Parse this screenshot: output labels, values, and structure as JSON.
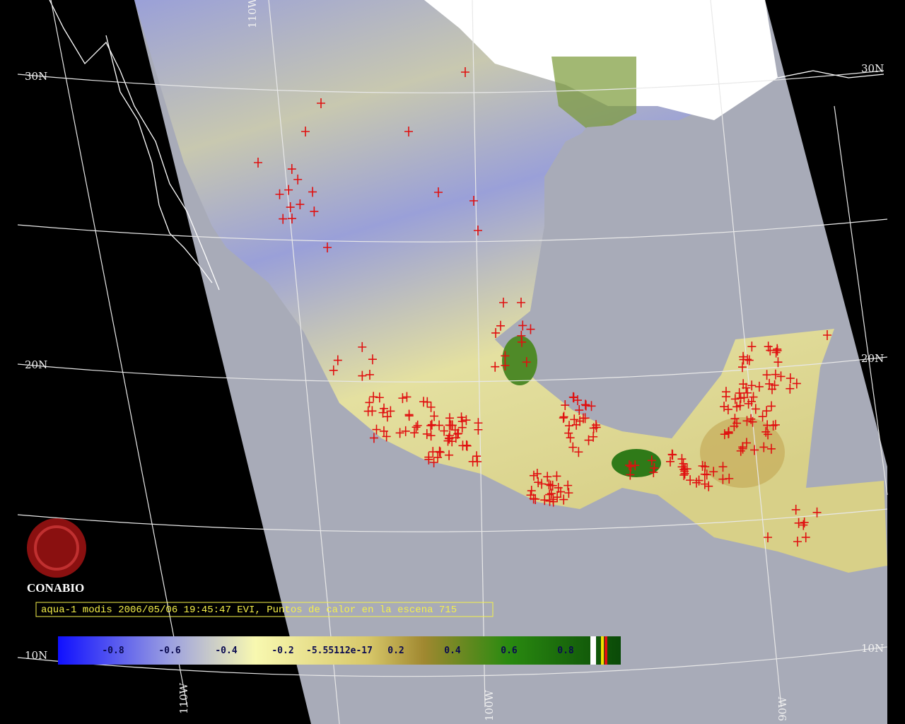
{
  "map_labels": {
    "latitudes": [
      "30N",
      "20N",
      "10N"
    ],
    "longitudes": [
      "110W",
      "100W",
      "90W"
    ]
  },
  "logo": {
    "text": "CONABIO"
  },
  "caption": "aqua-1 modis 2006/05/06 19:45:47 EVI, Puntos de calor en la escena 715",
  "colorbar": {
    "labels": [
      "-0.8",
      "-0.6",
      "-0.4",
      "-0.2",
      "-5.55112e-17",
      "0.2",
      "0.4",
      "0.6",
      "0.8"
    ]
  }
}
